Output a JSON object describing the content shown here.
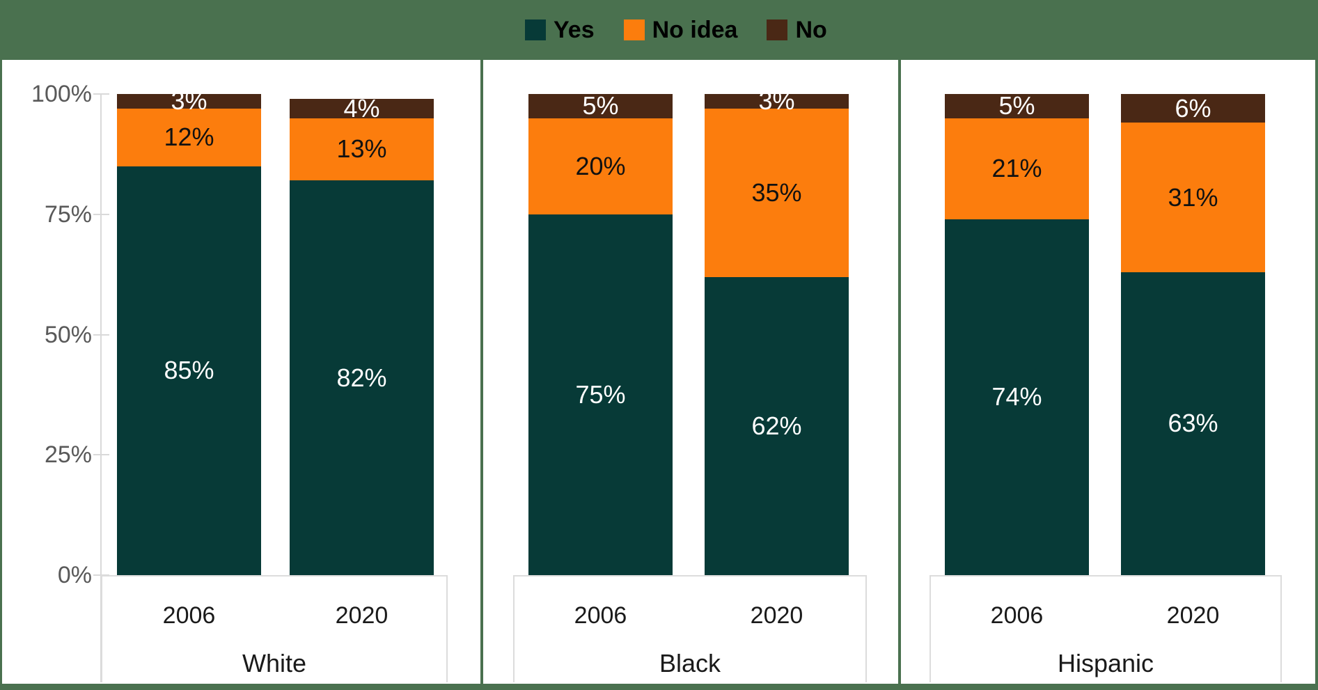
{
  "theme": {
    "frame_green": "#4a714f",
    "background": "#ffffff",
    "axis_text_gray": "#595959",
    "axis_line_gray": "#d9d9d9",
    "panel_border_gray": "#dcdcdc",
    "label_dark": "#1a1a1a"
  },
  "legend": {
    "items": [
      {
        "label": "Yes",
        "color": "#073a37"
      },
      {
        "label": "No idea",
        "color": "#fc7d0d"
      },
      {
        "label": "No",
        "color": "#4a2815"
      }
    ]
  },
  "chart_data": {
    "type": "bar",
    "stacked": true,
    "title": "",
    "xlabel": "",
    "ylabel": "",
    "ylim": [
      0,
      100
    ],
    "grid": false,
    "legend_position": "top",
    "y_ticks": [
      {
        "label": "0%",
        "value": 0
      },
      {
        "label": "25%",
        "value": 25
      },
      {
        "label": "50%",
        "value": 50
      },
      {
        "label": "75%",
        "value": 75
      },
      {
        "label": "100%",
        "value": 100
      }
    ],
    "groups": [
      {
        "label": "White",
        "years": [
          "2006",
          "2020"
        ]
      },
      {
        "label": "Black",
        "years": [
          "2006",
          "2020"
        ]
      },
      {
        "label": "Hispanic",
        "years": [
          "2006",
          "2020"
        ]
      }
    ],
    "categories": [
      "White 2006",
      "White 2020",
      "Black 2006",
      "Black 2020",
      "Hispanic 2006",
      "Hispanic 2020"
    ],
    "series": [
      {
        "name": "Yes",
        "color": "#073a37",
        "label_color": "#ffffff",
        "values": [
          85,
          82,
          75,
          62,
          74,
          63
        ]
      },
      {
        "name": "No idea",
        "color": "#fc7d0d",
        "label_color": "#111111",
        "values": [
          12,
          13,
          20,
          35,
          21,
          31
        ]
      },
      {
        "name": "No",
        "color": "#4a2815",
        "label_color": "#ffffff",
        "values": [
          3,
          4,
          5,
          3,
          5,
          6
        ]
      }
    ],
    "data_label_suffix": "%"
  }
}
